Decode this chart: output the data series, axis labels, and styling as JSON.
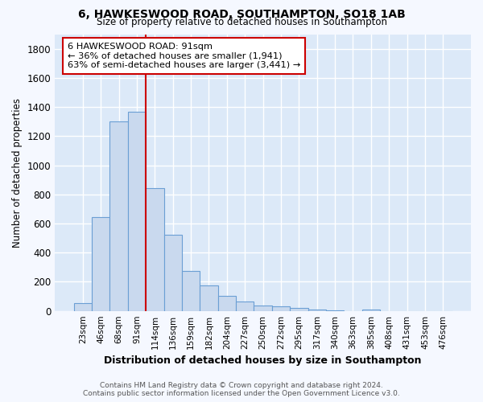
{
  "title_line1": "6, HAWKESWOOD ROAD, SOUTHAMPTON, SO18 1AB",
  "title_line2": "Size of property relative to detached houses in Southampton",
  "xlabel": "Distribution of detached houses by size in Southampton",
  "ylabel": "Number of detached properties",
  "bar_labels": [
    "23sqm",
    "46sqm",
    "68sqm",
    "91sqm",
    "114sqm",
    "136sqm",
    "159sqm",
    "182sqm",
    "204sqm",
    "227sqm",
    "250sqm",
    "272sqm",
    "295sqm",
    "317sqm",
    "340sqm",
    "363sqm",
    "385sqm",
    "408sqm",
    "431sqm",
    "453sqm",
    "476sqm"
  ],
  "bar_values": [
    55,
    645,
    1300,
    1370,
    845,
    525,
    275,
    175,
    105,
    65,
    35,
    30,
    20,
    10,
    5,
    0,
    12,
    0,
    0,
    0,
    0
  ],
  "bar_color": "#c9d9ee",
  "bar_edge_color": "#6b9fd4",
  "vline_color": "#cc0000",
  "annotation_text": "6 HAWKESWOOD ROAD: 91sqm\n← 36% of detached houses are smaller (1,941)\n63% of semi-detached houses are larger (3,441) →",
  "annotation_box_color": "#ffffff",
  "annotation_box_edge_color": "#cc0000",
  "ylim": [
    0,
    1900
  ],
  "yticks": [
    0,
    200,
    400,
    600,
    800,
    1000,
    1200,
    1400,
    1600,
    1800
  ],
  "plot_background_color": "#dce9f8",
  "fig_background_color": "#f5f8ff",
  "grid_color": "#ffffff",
  "footer_line1": "Contains HM Land Registry data © Crown copyright and database right 2024.",
  "footer_line2": "Contains public sector information licensed under the Open Government Licence v3.0."
}
